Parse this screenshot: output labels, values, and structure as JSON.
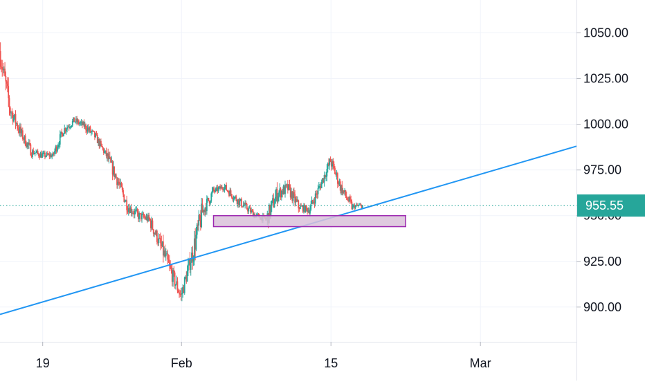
{
  "chart_data": {
    "type": "candlestick",
    "interval": "2h",
    "y_axis": {
      "ylim": [
        881,
        1068
      ],
      "ticks": [
        900,
        925,
        950,
        975,
        1000,
        1025,
        1050
      ],
      "tick_labels": [
        "900.00",
        "925.00",
        "950.00",
        "975.00",
        "1000.00",
        "1025.00",
        "1050.00"
      ]
    },
    "x_axis": {
      "xlim": [
        "2021-01-15",
        "2021-03-10"
      ],
      "ticks": [
        {
          "date": "2021-01-19",
          "label": "19"
        },
        {
          "date": "2021-02-01",
          "label": "Feb"
        },
        {
          "date": "2021-02-15",
          "label": "15"
        },
        {
          "date": "2021-03-01",
          "label": "Mar"
        }
      ]
    },
    "grid": true,
    "colors": {
      "up": "#26a69a",
      "down": "#ef5350",
      "trendline": "#2196f3",
      "zone_fill": "#d9c1d9",
      "zone_border": "#9c27b0",
      "last_price_bg": "#26a69a",
      "grid": "#f0f3fa"
    },
    "last_price": {
      "value": "955.55"
    },
    "trendline": {
      "from": {
        "date": "2021-01-15",
        "y": 896
      },
      "to": {
        "date": "2021-03-10",
        "y": 988
      }
    },
    "zone": {
      "from_date": "2021-02-04",
      "to_date": "2021-02-22",
      "y_low": 944,
      "y_high": 950
    },
    "candles_approx": [
      {
        "date": "2021-01-15",
        "close": 1040,
        "high": 1053,
        "low": 1031
      },
      {
        "date": "2021-01-16",
        "close": 1008,
        "high": 1016,
        "low": 1000
      },
      {
        "date": "2021-01-17",
        "close": 995,
        "high": 1004,
        "low": 983
      },
      {
        "date": "2021-01-18",
        "close": 985,
        "high": 995,
        "low": 978
      },
      {
        "date": "2021-01-19",
        "close": 983,
        "high": 993,
        "low": 978
      },
      {
        "date": "2021-01-20",
        "close": 983,
        "high": 990,
        "low": 980
      },
      {
        "date": "2021-01-21",
        "close": 997,
        "high": 1004,
        "low": 990
      },
      {
        "date": "2021-01-22",
        "close": 1002,
        "high": 1010,
        "low": 995
      },
      {
        "date": "2021-01-23",
        "close": 999,
        "high": 1006,
        "low": 993
      },
      {
        "date": "2021-01-24",
        "close": 993,
        "high": 1000,
        "low": 983
      },
      {
        "date": "2021-01-25",
        "close": 983,
        "high": 995,
        "low": 980
      },
      {
        "date": "2021-01-26",
        "close": 970,
        "high": 978,
        "low": 963
      },
      {
        "date": "2021-01-27",
        "close": 955,
        "high": 968,
        "low": 948
      },
      {
        "date": "2021-01-28",
        "close": 950,
        "high": 960,
        "low": 943
      },
      {
        "date": "2021-01-29",
        "close": 948,
        "high": 957,
        "low": 938
      },
      {
        "date": "2021-01-30",
        "close": 935,
        "high": 948,
        "low": 925
      },
      {
        "date": "2021-01-31",
        "close": 920,
        "high": 933,
        "low": 905
      },
      {
        "date": "2021-02-01",
        "close": 906,
        "high": 913,
        "low": 896
      },
      {
        "date": "2021-02-02",
        "close": 928,
        "high": 935,
        "low": 902
      },
      {
        "date": "2021-02-03",
        "close": 952,
        "high": 962,
        "low": 940
      },
      {
        "date": "2021-02-04",
        "close": 963,
        "high": 970,
        "low": 958
      },
      {
        "date": "2021-02-05",
        "close": 966,
        "high": 973,
        "low": 958
      },
      {
        "date": "2021-02-06",
        "close": 960,
        "high": 968,
        "low": 953
      },
      {
        "date": "2021-02-07",
        "close": 955,
        "high": 962,
        "low": 946
      },
      {
        "date": "2021-02-08",
        "close": 950,
        "high": 955,
        "low": 944
      },
      {
        "date": "2021-02-09",
        "close": 948,
        "high": 955,
        "low": 940
      },
      {
        "date": "2021-02-10",
        "close": 962,
        "high": 982,
        "low": 952
      },
      {
        "date": "2021-02-11",
        "close": 965,
        "high": 975,
        "low": 958
      },
      {
        "date": "2021-02-12",
        "close": 955,
        "high": 963,
        "low": 945
      },
      {
        "date": "2021-02-13",
        "close": 953,
        "high": 960,
        "low": 946
      },
      {
        "date": "2021-02-14",
        "close": 966,
        "high": 973,
        "low": 958
      },
      {
        "date": "2021-02-15",
        "close": 980,
        "high": 986,
        "low": 970
      },
      {
        "date": "2021-02-16",
        "close": 965,
        "high": 975,
        "low": 955
      },
      {
        "date": "2021-02-17",
        "close": 955,
        "high": 962,
        "low": 950
      },
      {
        "date": "2021-02-18",
        "close": 955.55,
        "high": 960,
        "low": 951
      }
    ]
  }
}
